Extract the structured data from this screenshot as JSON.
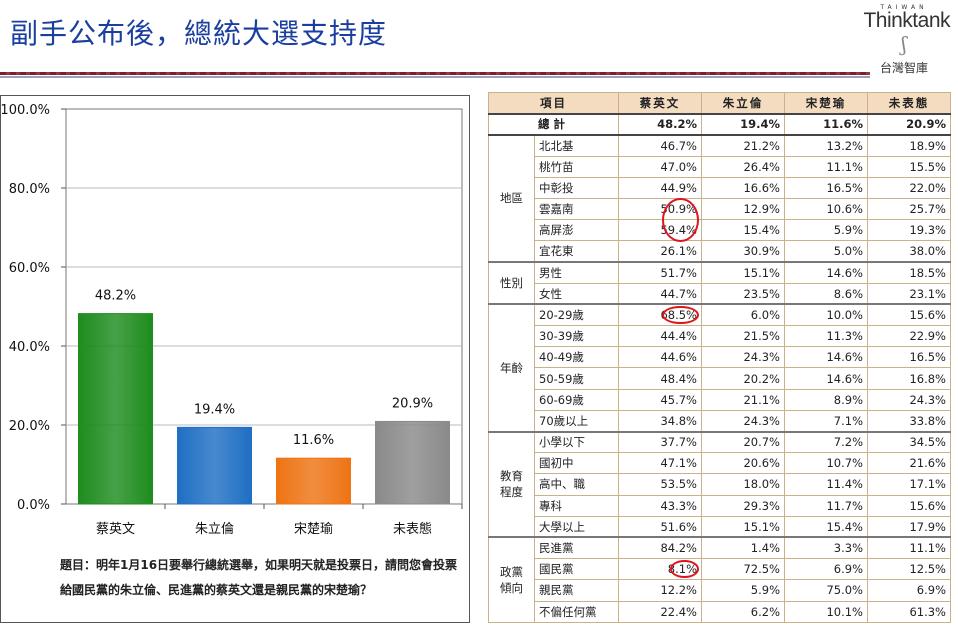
{
  "title": "副手公布後，總統大選支持度",
  "logo": {
    "top": "TAIWAN",
    "name": "Thinktank",
    "sub": "台灣智庫"
  },
  "question": "題目：明年1月16日要舉行總統選舉，如果明天就是投票日，請問您會投票給國民黨的朱立倫、民進黨的蔡英文還是親民黨的宋楚瑜？",
  "chart_data": {
    "type": "bar",
    "categories": [
      "蔡英文",
      "朱立倫",
      "宋楚瑜",
      "未表態"
    ],
    "values": [
      48.2,
      19.4,
      11.6,
      20.9
    ],
    "value_labels": [
      "48.2%",
      "19.4%",
      "11.6%",
      "20.9%"
    ],
    "colors": [
      "#1e8c1e",
      "#1f6fc4",
      "#ee7414",
      "#8a8a8a"
    ],
    "ylim": [
      0,
      100
    ],
    "yticks": [
      "0.0%",
      "20.0%",
      "40.0%",
      "60.0%",
      "80.0%",
      "100.0%"
    ],
    "grid": true
  },
  "table": {
    "headers": [
      "項目",
      "蔡英文",
      "朱立倫",
      "宋楚瑜",
      "未表態"
    ],
    "total": {
      "label": "總計",
      "values": [
        "48.2%",
        "19.4%",
        "11.6%",
        "20.9%"
      ]
    },
    "groups": [
      {
        "name": "地區",
        "rows": [
          {
            "label": "北北基",
            "values": [
              "46.7%",
              "21.2%",
              "13.2%",
              "18.9%"
            ]
          },
          {
            "label": "桃竹苗",
            "values": [
              "47.0%",
              "26.4%",
              "11.1%",
              "15.5%"
            ]
          },
          {
            "label": "中彰投",
            "values": [
              "44.9%",
              "16.6%",
              "16.5%",
              "22.0%"
            ]
          },
          {
            "label": "雲嘉南",
            "values": [
              "50.9%",
              "12.9%",
              "10.6%",
              "25.7%"
            ]
          },
          {
            "label": "高屏澎",
            "values": [
              "59.4%",
              "15.4%",
              "5.9%",
              "19.3%"
            ]
          },
          {
            "label": "宜花東",
            "values": [
              "26.1%",
              "30.9%",
              "5.0%",
              "38.0%"
            ]
          }
        ]
      },
      {
        "name": "性別",
        "rows": [
          {
            "label": "男性",
            "values": [
              "51.7%",
              "15.1%",
              "14.6%",
              "18.5%"
            ]
          },
          {
            "label": "女性",
            "values": [
              "44.7%",
              "23.5%",
              "8.6%",
              "23.1%"
            ]
          }
        ]
      },
      {
        "name": "年齡",
        "rows": [
          {
            "label": "20-29歲",
            "values": [
              "68.5%",
              "6.0%",
              "10.0%",
              "15.6%"
            ]
          },
          {
            "label": "30-39歲",
            "values": [
              "44.4%",
              "21.5%",
              "11.3%",
              "22.9%"
            ]
          },
          {
            "label": "40-49歲",
            "values": [
              "44.6%",
              "24.3%",
              "14.6%",
              "16.5%"
            ]
          },
          {
            "label": "50-59歲",
            "values": [
              "48.4%",
              "20.2%",
              "14.6%",
              "16.8%"
            ]
          },
          {
            "label": "60-69歲",
            "values": [
              "45.7%",
              "21.1%",
              "8.9%",
              "24.3%"
            ]
          },
          {
            "label": "70歲以上",
            "values": [
              "34.8%",
              "24.3%",
              "7.1%",
              "33.8%"
            ]
          }
        ]
      },
      {
        "name": "教育程度",
        "rows": [
          {
            "label": "小學以下",
            "values": [
              "37.7%",
              "20.7%",
              "7.2%",
              "34.5%"
            ]
          },
          {
            "label": "國初中",
            "values": [
              "47.1%",
              "20.6%",
              "10.7%",
              "21.6%"
            ]
          },
          {
            "label": "高中、職",
            "values": [
              "53.5%",
              "18.0%",
              "11.4%",
              "17.1%"
            ]
          },
          {
            "label": "專科",
            "values": [
              "43.3%",
              "29.3%",
              "11.7%",
              "15.6%"
            ]
          },
          {
            "label": "大學以上",
            "values": [
              "51.6%",
              "15.1%",
              "15.4%",
              "17.9%"
            ]
          }
        ]
      },
      {
        "name": "政黨傾向",
        "rows": [
          {
            "label": "民進黨",
            "values": [
              "84.2%",
              "1.4%",
              "3.3%",
              "11.1%"
            ]
          },
          {
            "label": "國民黨",
            "values": [
              "8.1%",
              "72.5%",
              "6.9%",
              "12.5%"
            ]
          },
          {
            "label": "親民黨",
            "values": [
              "12.2%",
              "5.9%",
              "75.0%",
              "6.9%"
            ]
          },
          {
            "label": "不偏任何黨",
            "values": [
              "22.4%",
              "6.2%",
              "10.1%",
              "61.3%"
            ]
          }
        ]
      }
    ]
  }
}
